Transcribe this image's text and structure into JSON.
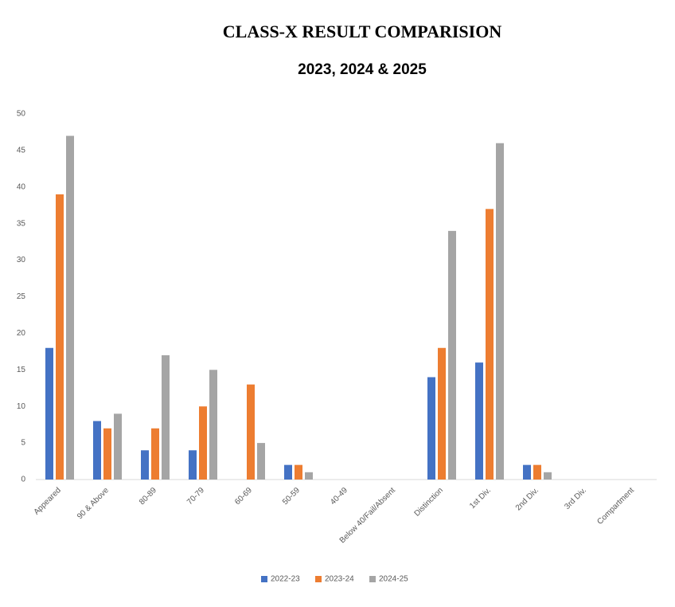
{
  "chart_data": {
    "type": "bar",
    "title": "CLASS-X RESULT COMPARISION",
    "subtitle": "2023, 2024 & 2025",
    "categories": [
      "Appeared",
      "90 & Above",
      "80-89",
      "70-79",
      "60-69",
      "50-59",
      "40-49",
      "Below 40/Fail/Absent",
      "Distinction",
      "1st Div.",
      "2nd Div.",
      "3rd Div.",
      "Compartment"
    ],
    "series": [
      {
        "name": "2022-23",
        "color": "#4472c4",
        "values": [
          18,
          8,
          4,
          4,
          0,
          2,
          0,
          0,
          14,
          16,
          2,
          0,
          0
        ]
      },
      {
        "name": "2023-24",
        "color": "#ed7d31",
        "values": [
          39,
          7,
          7,
          10,
          13,
          2,
          0,
          0,
          18,
          37,
          2,
          0,
          0
        ]
      },
      {
        "name": "2024-25",
        "color": "#a5a5a5",
        "values": [
          47,
          9,
          17,
          15,
          5,
          1,
          0,
          0,
          34,
          46,
          1,
          0,
          0
        ]
      }
    ],
    "ylim": [
      0,
      50
    ],
    "yticks": [
      0,
      5,
      10,
      15,
      20,
      25,
      30,
      35,
      40,
      45,
      50
    ],
    "grid": false,
    "legend": "bottom"
  }
}
